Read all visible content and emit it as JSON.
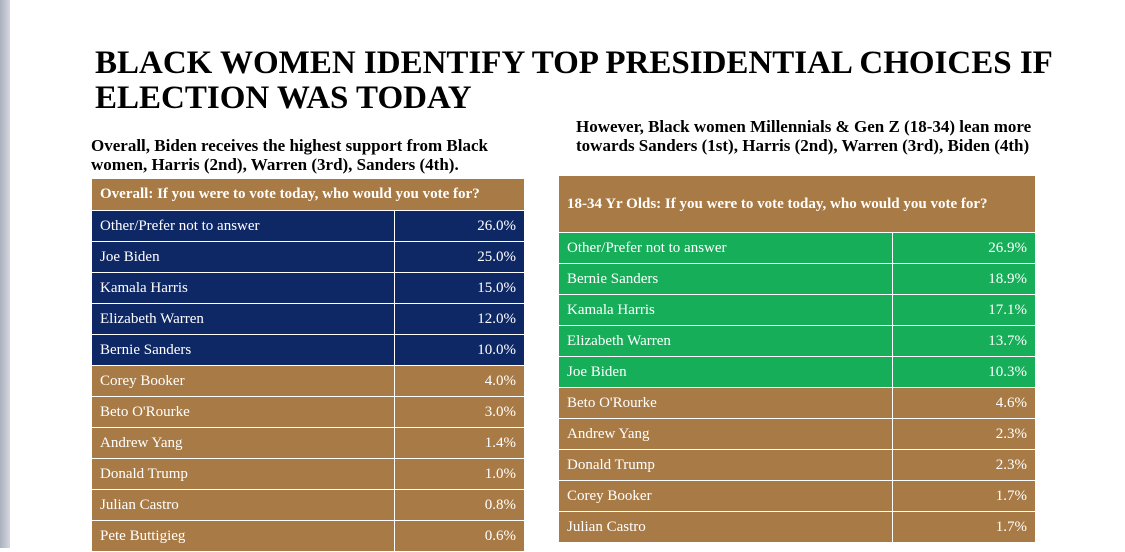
{
  "title": "BLACK WOMEN IDENTIFY TOP PRESIDENTIAL CHOICES IF ELECTION WAS TODAY",
  "left": {
    "subtitle": "Overall, Biden receives the highest support from Black women, Harris (2nd), Warren (3rd), Sanders (4th).",
    "table_header": "Overall: If you were to vote today, who would you vote for?",
    "rows": [
      {
        "name": "Other/Prefer not to answer",
        "value": "26.0%"
      },
      {
        "name": "Joe Biden",
        "value": "25.0%"
      },
      {
        "name": "Kamala Harris",
        "value": "15.0%"
      },
      {
        "name": "Elizabeth Warren",
        "value": "12.0%"
      },
      {
        "name": "Bernie Sanders",
        "value": "10.0%"
      },
      {
        "name": "Corey Booker",
        "value": "4.0%"
      },
      {
        "name": "Beto O'Rourke",
        "value": "3.0%"
      },
      {
        "name": "Andrew Yang",
        "value": "1.4%"
      },
      {
        "name": "Donald Trump",
        "value": "1.0%"
      },
      {
        "name": "Julian Castro",
        "value": "0.8%"
      },
      {
        "name": "Pete Buttigieg",
        "value": "0.6%"
      }
    ]
  },
  "right": {
    "subtitle": "However, Black women Millennials & Gen Z (18-34) lean more towards Sanders (1st), Harris (2nd), Warren (3rd), Biden (4th)",
    "table_header": "18-34 Yr Olds: If you were to vote today, who would you vote for?",
    "rows": [
      {
        "name": "Other/Prefer not to answer",
        "value": "26.9%"
      },
      {
        "name": "Bernie Sanders",
        "value": "18.9%"
      },
      {
        "name": "Kamala Harris",
        "value": "17.1%"
      },
      {
        "name": "Elizabeth Warren",
        "value": "13.7%"
      },
      {
        "name": "Joe Biden",
        "value": "10.3%"
      },
      {
        "name": "Beto O'Rourke",
        "value": "4.6%"
      },
      {
        "name": "Andrew Yang",
        "value": "2.3%"
      },
      {
        "name": "Donald Trump",
        "value": "2.3%"
      },
      {
        "name": "Corey Booker",
        "value": "1.7%"
      },
      {
        "name": "Julian Castro",
        "value": "1.7%"
      }
    ]
  },
  "colors": {
    "highlight_left": "#0e2866",
    "highlight_right": "#16ae59",
    "base": "#a87a45"
  }
}
